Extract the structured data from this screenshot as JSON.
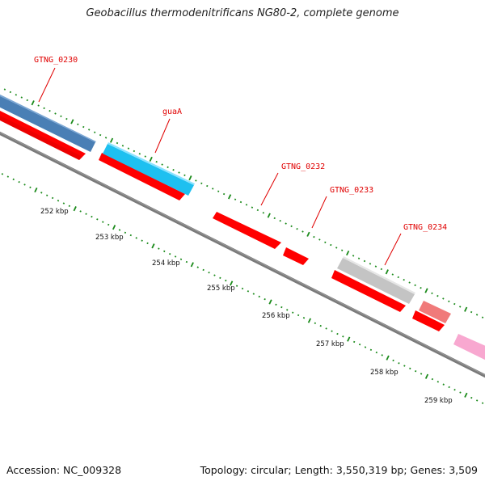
{
  "title": "Geobacillus thermodenitrificans NG80-2, complete genome",
  "footer": {
    "accession": "Accession: NC_009328",
    "summary": "Topology: circular; Length: 3,550,319 bp; Genes: 3,509"
  },
  "colors": {
    "cds_red": "#ff0000",
    "backbone": "#777777",
    "tick_green": "#1a8a1a",
    "label_red": "#e00000",
    "gene_blue": "#4a7fb5",
    "gene_cyan": "#1ec0f0",
    "gene_gray": "#c4c4c4",
    "gene_salmon": "#f07a7a",
    "gene_pink": "#f8a8d0"
  },
  "gene_labels": [
    {
      "text": "GTNG_0230"
    },
    {
      "text": "guaA"
    },
    {
      "text": "GTNG_0232"
    },
    {
      "text": "GTNG_0233"
    },
    {
      "text": "GTNG_0234"
    }
  ],
  "kbp_labels": [
    "252 kbp",
    "253 kbp",
    "254 kbp",
    "255 kbp",
    "256 kbp",
    "257 kbp",
    "258 kbp",
    "259 kbp"
  ]
}
